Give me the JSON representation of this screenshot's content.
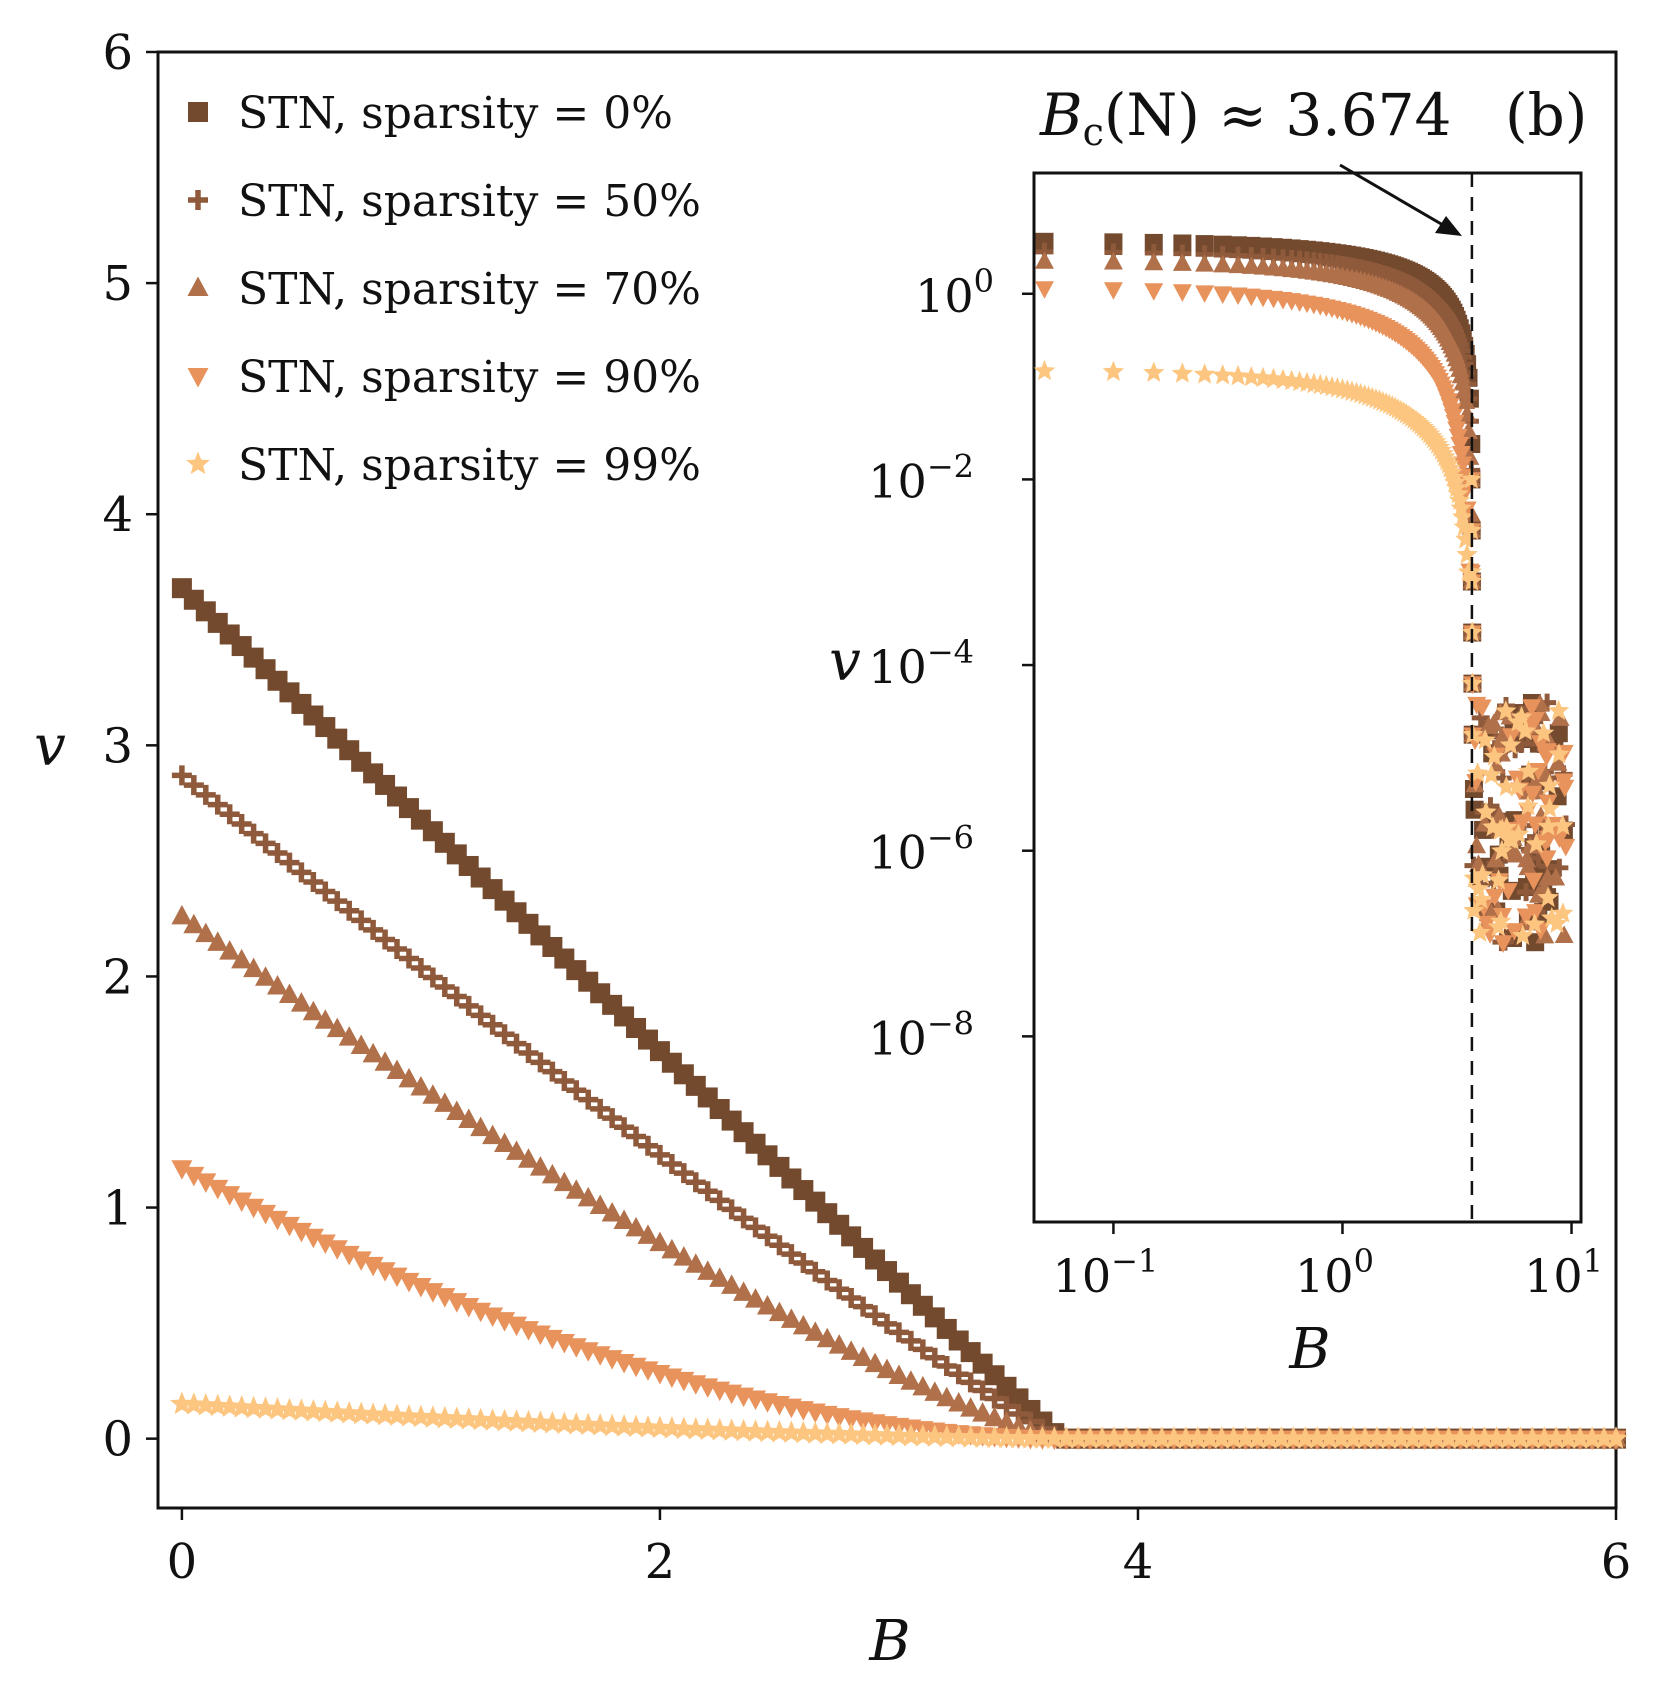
{
  "panel_label": "(b)",
  "annotation": {
    "text_main": "B",
    "text_sub": "c",
    "text_rest": "(N) ≈ 3.674",
    "value": 3.674
  },
  "colors": {
    "s0": "#744a2f",
    "s50": "#8f5a3b",
    "s70": "#b0704a",
    "s90": "#e8925c",
    "s99": "#fdc680"
  },
  "chart_data": [
    {
      "type": "scatter",
      "id": "main",
      "xlabel": "B",
      "ylabel": "v",
      "xlim": [
        -0.1,
        6
      ],
      "ylim": [
        -0.3,
        6
      ],
      "xticks": [
        "0",
        "2",
        "4",
        "6"
      ],
      "yticks": [
        "0",
        "1",
        "2",
        "3",
        "4",
        "5",
        "6"
      ],
      "legend_position": "top-left",
      "x_range": [
        0,
        6
      ],
      "x_step": 0.05,
      "critical_x": 3.674,
      "series": [
        {
          "name": "STN, sparsity = 0%",
          "marker": "square",
          "color_key": "s0",
          "v0": 3.68,
          "curvature": 1.0
        },
        {
          "name": "STN, sparsity = 50%",
          "marker": "plus",
          "color_key": "s50",
          "v0": 2.87,
          "curvature": 1.08
        },
        {
          "name": "STN, sparsity = 70%",
          "marker": "triangle-up",
          "color_key": "s70",
          "v0": 2.26,
          "curvature": 1.25
        },
        {
          "name": "STN, sparsity = 90%",
          "marker": "triangle-down",
          "color_key": "s90",
          "v0": 1.17,
          "curvature": 1.8
        },
        {
          "name": "STN, sparsity = 99%",
          "marker": "star",
          "color_key": "s99",
          "v0": 0.15,
          "curvature": 1.5
        }
      ]
    },
    {
      "type": "scatter",
      "id": "inset",
      "xscale": "log",
      "yscale": "log",
      "xlabel": "B",
      "ylabel": "v",
      "xlim": [
        0.045,
        11
      ],
      "ylim": [
        1e-10,
        20
      ],
      "xticks": [
        "10^-1",
        "10^0",
        "10^1"
      ],
      "yticks": [
        "10^0",
        "10^-2",
        "10^-4",
        "10^-6",
        "10^-8"
      ],
      "critical_line_x": 3.674,
      "noise_floor_range": [
        1e-07,
        4e-05
      ],
      "noise_x_range": [
        3.7,
        9.5
      ]
    }
  ]
}
